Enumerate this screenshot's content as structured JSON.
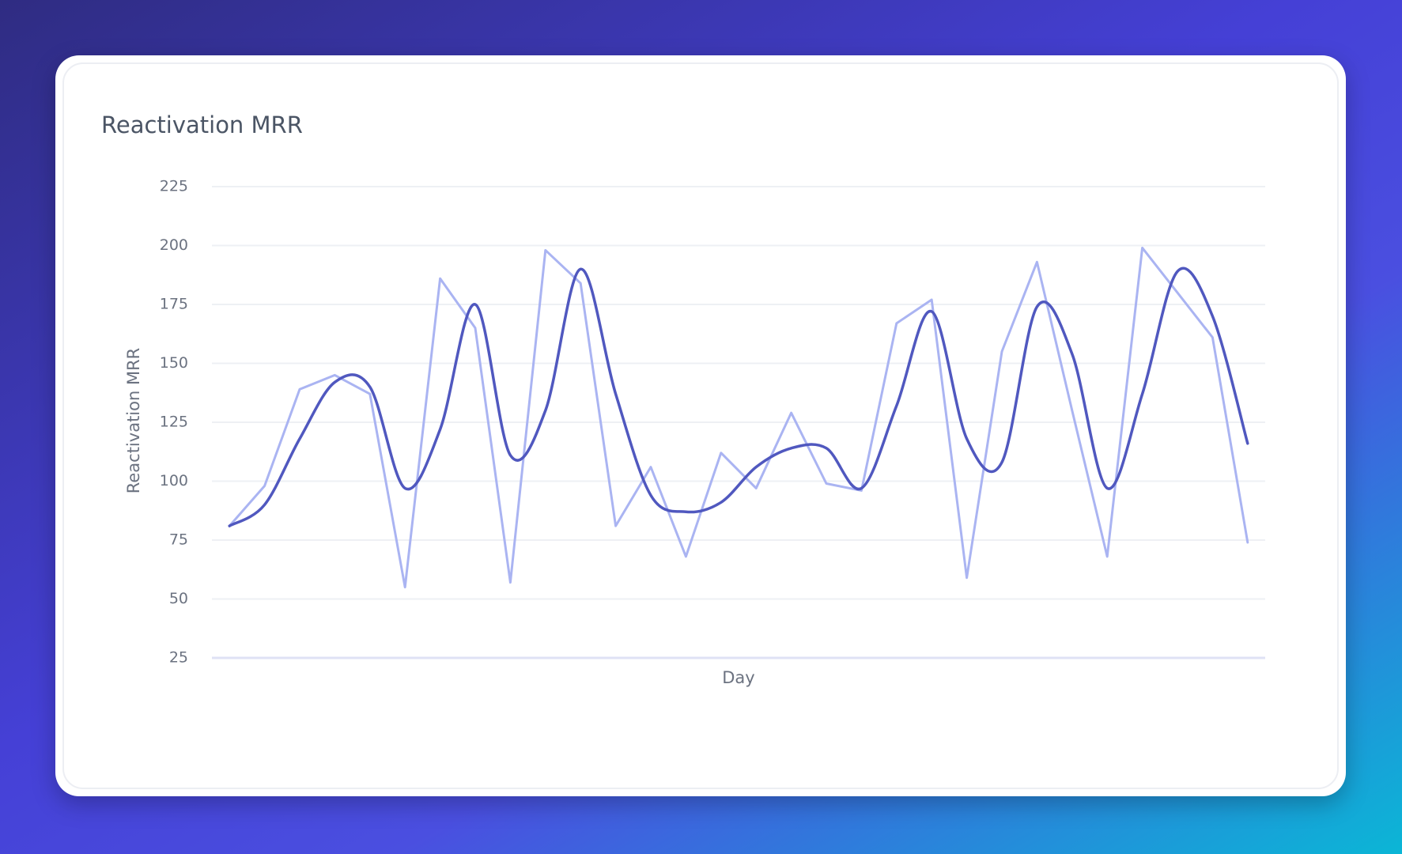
{
  "chart_data": {
    "type": "line",
    "title": "Reactivation MRR",
    "x_label": "Day",
    "y_label": "Reactivation MRR",
    "categories": [
      null,
      null,
      null,
      null,
      null,
      null,
      null,
      null,
      null,
      null,
      null,
      null,
      null,
      null,
      null,
      null,
      null,
      null,
      null,
      null,
      null,
      null,
      null,
      null,
      null,
      null,
      null,
      null,
      null,
      null
    ],
    "series": [
      {
        "color": "#aab4f2",
        "smooth": false,
        "values": [
          81,
          98,
          139,
          145,
          137,
          55,
          186,
          165,
          57,
          198,
          184,
          81,
          106,
          68,
          112,
          97,
          129,
          99,
          96,
          167,
          177,
          59,
          155,
          193,
          130,
          68,
          199,
          180,
          161,
          74
        ]
      },
      {
        "color": "#5058bf",
        "smooth": true,
        "values": [
          81,
          90,
          118,
          142,
          140,
          97,
          122,
          175,
          111,
          130,
          190,
          137,
          94,
          87,
          91,
          106,
          114,
          114,
          97,
          132,
          172,
          118,
          108,
          174,
          154,
          97,
          137,
          189,
          170,
          116
        ]
      }
    ],
    "ylim": [
      25,
      225
    ],
    "yticks": [
      25,
      50,
      75,
      100,
      125,
      150,
      175,
      200,
      225
    ],
    "grid": true
  }
}
